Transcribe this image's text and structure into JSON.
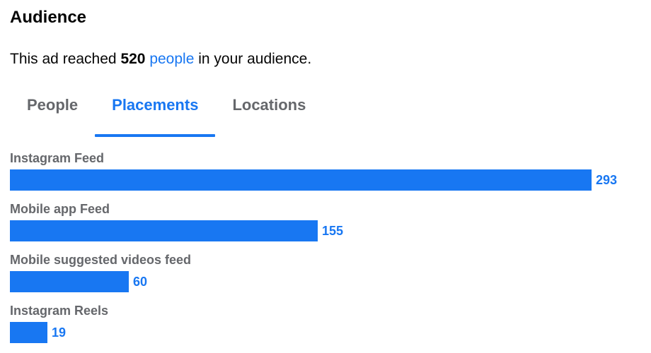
{
  "header": {
    "title": "Audience"
  },
  "summary": {
    "prefix": "This ad reached",
    "count": "520",
    "link": "people",
    "suffix": "in your audience."
  },
  "tabs": [
    {
      "label": "People",
      "active": false
    },
    {
      "label": "Placements",
      "active": true
    },
    {
      "label": "Locations",
      "active": false
    }
  ],
  "colors": {
    "accent": "#1877f2",
    "muted": "#65676b"
  },
  "chart_data": {
    "type": "bar",
    "orientation": "horizontal",
    "categories": [
      "Instagram Feed",
      "Mobile app Feed",
      "Mobile suggested videos feed",
      "Instagram Reels"
    ],
    "values": [
      293,
      155,
      60,
      19
    ],
    "value_labels": [
      "293",
      "155",
      "60",
      "19"
    ]
  }
}
